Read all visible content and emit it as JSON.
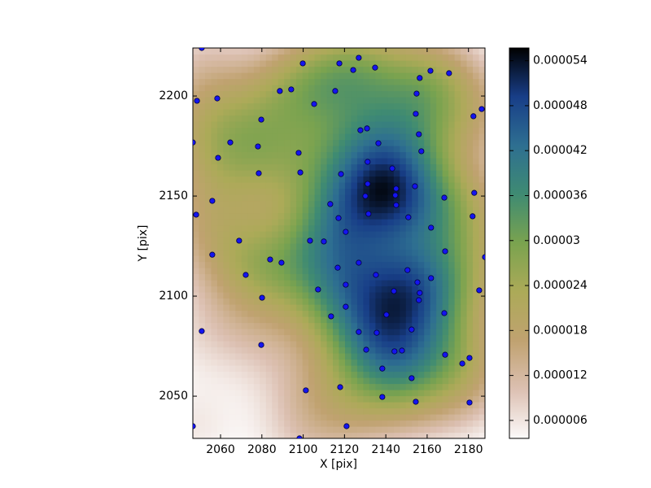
{
  "chart_data": {
    "type": "scatter",
    "x_label": "X [pix]",
    "y_label": "Y [pix]",
    "x": [
      2050.9,
      2048.6,
      2058.4,
      2046.6,
      2064.7,
      2058.8,
      2078.1,
      2079.7,
      2078.5,
      2088.7,
      2094.2,
      2099.8,
      2105.3,
      2097.8,
      2098.6,
      2115.5,
      2117.5,
      2126.9,
      2124.2,
      2134.8,
      2127.7,
      2130.9,
      2136.4,
      2131.2,
      2118.3,
      2143.1,
      2145.0,
      2131.2,
      2130.1,
      2144.6,
      2131.6,
      2145.0,
      2150.9,
      2154.1,
      2156.4,
      2154.9,
      2161.6,
      2170.6,
      2154.5,
      2156.0,
      2157.2,
      2168.3,
      2161.9,
      2168.7,
      2186.4,
      2182.4,
      2182.8,
      2182.0,
      2188.0,
      2185.2,
      2168.3,
      2168.7,
      2177.0,
      2180.5,
      2180.5,
      2154.5,
      2152.5,
      2138.3,
      2138.3,
      2147.8,
      2144.2,
      2135.6,
      2130.5,
      2126.9,
      2140.3,
      2152.5,
      2143.9,
      2156.0,
      2156.4,
      2155.3,
      2161.9,
      2150.5,
      2135.2,
      2126.9,
      2116.7,
      2120.6,
      2120.6,
      2113.5,
      2117.9,
      2107.2,
      2103.3,
      2110.0,
      2113.1,
      2117.1,
      2120.6,
      2101.3,
      2121.0,
      2098.2,
      2046.6,
      2050.9,
      2080.1,
      2079.7,
      2072.2,
      2069.0,
      2084.0,
      2089.5,
      2056.0,
      2056.0,
      2048.2
    ],
    "y": [
      2224.0,
      2197.6,
      2198.8,
      2176.8,
      2176.8,
      2169.1,
      2174.8,
      2188.2,
      2161.4,
      2202.5,
      2203.3,
      2216.3,
      2196.0,
      2171.6,
      2161.8,
      2202.5,
      2216.3,
      2219.1,
      2213.0,
      2214.2,
      2182.9,
      2183.8,
      2176.4,
      2167.1,
      2161.0,
      2163.8,
      2153.7,
      2156.1,
      2150.0,
      2150.4,
      2141.1,
      2145.5,
      2139.4,
      2154.9,
      2209.0,
      2201.2,
      2212.6,
      2211.4,
      2191.1,
      2180.9,
      2172.4,
      2149.2,
      2134.2,
      2122.4,
      2193.5,
      2189.9,
      2151.6,
      2139.9,
      2119.5,
      2102.9,
      2091.5,
      2070.7,
      2066.3,
      2069.1,
      2046.8,
      2047.2,
      2059.0,
      2049.6,
      2063.8,
      2072.8,
      2072.4,
      2081.7,
      2073.2,
      2082.1,
      2090.7,
      2083.3,
      2102.5,
      2098.0,
      2101.6,
      2106.9,
      2109.0,
      2113.0,
      2110.6,
      2116.7,
      2114.2,
      2105.7,
      2094.7,
      2089.9,
      2054.5,
      2103.3,
      2127.7,
      2127.3,
      2146.0,
      2139.0,
      2132.1,
      2052.9,
      2035.0,
      2028.9,
      2035.0,
      2082.5,
      2099.2,
      2075.6,
      2110.6,
      2127.7,
      2118.3,
      2116.7,
      2120.7,
      2147.6,
      2140.7
    ],
    "color": "#1414f0",
    "xlim": [
      2046.6,
      2188.0
    ],
    "xticks": [
      2060,
      2080,
      2100,
      2120,
      2140,
      2160,
      2180
    ],
    "ylim": [
      2028.9,
      2224.0
    ],
    "yticks": [
      2050,
      2100,
      2150,
      2200
    ],
    "colormap": [
      "#fcfafa",
      "#dcc0b2",
      "#c0a270",
      "#acaa58",
      "#7aa34f",
      "#3f8b72",
      "#2e6f91",
      "#183e88",
      "#000000"
    ],
    "clim": [
      3.6e-06,
      5.57e-05
    ],
    "cticks": [
      6e-06,
      1.2e-05,
      1.8e-05,
      2.4e-05,
      3e-05,
      3.6e-05,
      4.2e-05,
      4.8e-05,
      5.4e-05
    ]
  }
}
